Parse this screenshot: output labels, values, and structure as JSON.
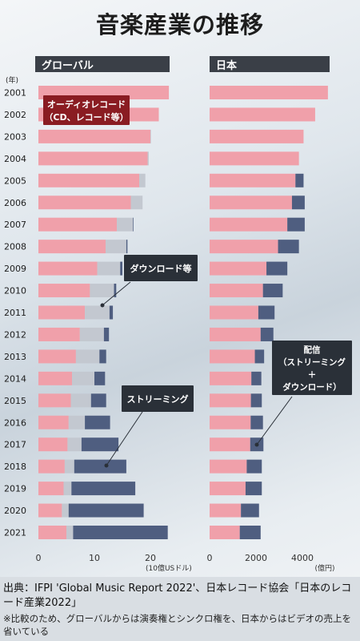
{
  "title": "音楽産業の推移",
  "year_unit": "(年)",
  "footer": {
    "source": "出典：IFPI 'Global Music Report 2022'、日本レコード協会「日本のレコード産業2022」",
    "note": "※比較のため、グローバルからは演奏権とシンクロ権を、日本からはビデオの売上を省いている"
  },
  "colors": {
    "audio": "#f0a0aa",
    "download": "#c3c8d0",
    "streaming": "#4f5e80",
    "callout": "#2a3038",
    "callout_red": "#8a1c22"
  },
  "chart_data": [
    {
      "panel": "グローバル",
      "type": "bar",
      "stacked": true,
      "orientation": "horizontal",
      "categories": [
        "2001",
        "2002",
        "2003",
        "2004",
        "2005",
        "2006",
        "2007",
        "2008",
        "2009",
        "2010",
        "2011",
        "2012",
        "2013",
        "2014",
        "2015",
        "2016",
        "2017",
        "2018",
        "2019",
        "2020",
        "2021"
      ],
      "series": [
        {
          "name": "オーディオレコード（CD、レコード等）",
          "values": [
            23.3,
            21.5,
            20.0,
            19.5,
            18.0,
            16.5,
            14.0,
            12.0,
            10.5,
            9.2,
            8.3,
            7.4,
            6.7,
            6.0,
            5.8,
            5.4,
            5.2,
            4.7,
            4.5,
            4.2,
            5.0
          ]
        },
        {
          "name": "ダウンロード等",
          "values": [
            0.0,
            0.0,
            0.1,
            0.2,
            1.1,
            2.1,
            2.9,
            3.7,
            4.1,
            4.3,
            4.4,
            4.3,
            4.2,
            4.0,
            3.6,
            2.9,
            2.5,
            1.7,
            1.4,
            1.2,
            1.2
          ]
        },
        {
          "name": "ストリーミング",
          "values": [
            0.0,
            0.0,
            0.0,
            0.0,
            0.0,
            0.0,
            0.1,
            0.2,
            0.4,
            0.4,
            0.6,
            0.9,
            1.2,
            1.9,
            2.7,
            4.5,
            6.6,
            9.3,
            11.4,
            13.4,
            16.9
          ]
        }
      ],
      "xlim": [
        0,
        25
      ],
      "xticks": [
        "0",
        "10",
        "20"
      ],
      "xlabel": "(10億USドル)"
    },
    {
      "panel": "日本",
      "type": "bar",
      "stacked": true,
      "orientation": "horizontal",
      "categories": [
        "2001",
        "2002",
        "2003",
        "2004",
        "2005",
        "2006",
        "2007",
        "2008",
        "2009",
        "2010",
        "2011",
        "2012",
        "2013",
        "2014",
        "2015",
        "2016",
        "2017",
        "2018",
        "2019",
        "2020",
        "2021"
      ],
      "series": [
        {
          "name": "オーディオレコード",
          "values": [
            5100,
            4550,
            4050,
            3850,
            3700,
            3550,
            3350,
            2950,
            2450,
            2300,
            2100,
            2200,
            1950,
            1800,
            1780,
            1770,
            1750,
            1600,
            1550,
            1350,
            1300
          ]
        },
        {
          "name": "配信（ストリーミング＋ダウンロード）",
          "values": [
            0,
            0,
            0,
            0,
            350,
            550,
            750,
            900,
            900,
            850,
            700,
            550,
            400,
            430,
            470,
            530,
            570,
            650,
            700,
            780,
            900
          ]
        }
      ],
      "xlim": [
        0,
        5400
      ],
      "xticks": [
        "0",
        "2000",
        "4000"
      ],
      "xlabel": "(億円)"
    }
  ],
  "callouts": {
    "audio": [
      "オーディオレコード",
      "（CD、レコード等）"
    ],
    "download": [
      "ダウンロード等"
    ],
    "streaming": [
      "ストリーミング"
    ],
    "japan": [
      "配信",
      "（ストリーミング",
      "＋",
      "ダウンロード）"
    ]
  }
}
